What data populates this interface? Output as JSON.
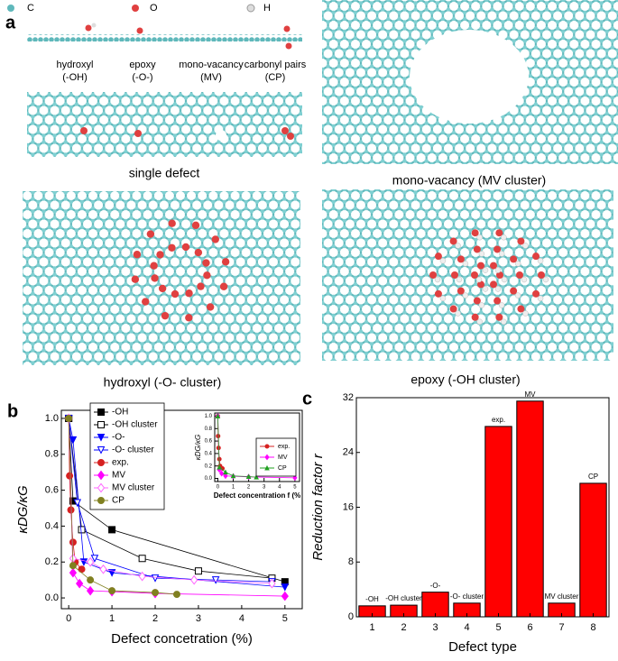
{
  "panel_a": {
    "panel_label": "a",
    "atom_legend": [
      "C",
      "O",
      "H"
    ],
    "defect_labels": [
      {
        "name": "hydroxyl",
        "abbr": "(-OH)"
      },
      {
        "name": "epoxy",
        "abbr": "(-O-)"
      },
      {
        "name": "mono-vacancy",
        "abbr": "(MV)"
      },
      {
        "name": "carbonyl pairs",
        "abbr": "(CP)"
      }
    ],
    "captions": [
      "single defect",
      "mono-vacancy (MV cluster)",
      "hydroxyl (-O- cluster)",
      "epoxy (-OH cluster)"
    ]
  },
  "chart_data": [
    {
      "type": "line",
      "panel_label": "b",
      "y_label": "κDG/κG",
      "x_label": "Defect concetration (%)",
      "xlim": [
        -0.17,
        5.4
      ],
      "ylim": [
        -0.06,
        1.045
      ],
      "xticks": [
        0,
        1,
        2,
        3,
        4,
        5
      ],
      "yticks": [
        {
          "value": 0,
          "label": "0.0"
        },
        {
          "value": 0.2,
          "label": "0.2"
        },
        {
          "value": 0.4,
          "label": "0.4"
        },
        {
          "value": 0.6,
          "label": "0.6"
        },
        {
          "value": 0.8,
          "label": "0.8"
        },
        {
          "value": 1,
          "label": "1.0"
        }
      ],
      "legend": "upper left",
      "series": [
        {
          "name": "-OH",
          "color": "#000000",
          "marker": "square",
          "filled": true,
          "x": [
            0,
            0.1,
            1,
            5
          ],
          "values": [
            1.0,
            0.54,
            0.38,
            0.09
          ]
        },
        {
          "name": "-OH cluster",
          "color": "#000000",
          "marker": "square",
          "filled": false,
          "x": [
            0,
            0.3,
            1.7,
            3.0,
            4.7
          ],
          "values": [
            1.0,
            0.38,
            0.22,
            0.15,
            0.11
          ]
        },
        {
          "name": "-O-",
          "color": "#0000ff",
          "marker": "triangle-down",
          "filled": true,
          "x": [
            0,
            0.1,
            0.35,
            1,
            5
          ],
          "values": [
            1.0,
            0.88,
            0.2,
            0.14,
            0.06
          ]
        },
        {
          "name": "-O- cluster",
          "color": "#0000ff",
          "marker": "triangle-down",
          "filled": false,
          "x": [
            0,
            0.2,
            0.6,
            2.0,
            3.4,
            4.7
          ],
          "values": [
            1.0,
            0.53,
            0.22,
            0.11,
            0.1,
            0.09
          ]
        },
        {
          "name": "exp.",
          "color": "#d62020",
          "marker": "circle",
          "filled": true,
          "x": [
            0,
            0.02,
            0.05,
            0.1,
            0.15,
            0.3
          ],
          "values": [
            1.0,
            0.68,
            0.49,
            0.31,
            0.2,
            0.16
          ]
        },
        {
          "name": "MV",
          "color": "#ff00ff",
          "marker": "diamond",
          "filled": true,
          "x": [
            0,
            0.1,
            0.25,
            0.5,
            1,
            2,
            5
          ],
          "values": [
            1.0,
            0.14,
            0.08,
            0.04,
            0.035,
            0.025,
            0.01
          ]
        },
        {
          "name": "MV cluster",
          "color": "#ff66ff",
          "marker": "diamond",
          "filled": false,
          "x": [
            0,
            0.1,
            0.5,
            0.8,
            1.7,
            2.9,
            4.7
          ],
          "values": [
            1.0,
            0.22,
            0.2,
            0.16,
            0.12,
            0.1,
            0.08
          ]
        },
        {
          "name": "CP",
          "color": "#808020",
          "marker": "circle",
          "filled": true,
          "x": [
            0,
            0.1,
            0.5,
            1,
            2,
            2.5
          ],
          "values": [
            1.0,
            0.18,
            0.1,
            0.04,
            0.03,
            0.02
          ]
        }
      ]
    },
    {
      "type": "line",
      "y_label": "κDG/κG",
      "x_label": "Defect concentration f (%",
      "xlim": [
        -0.2,
        5.3
      ],
      "ylim": [
        -0.05,
        1.05
      ],
      "xticks": [
        0,
        1,
        2,
        3,
        4,
        5
      ],
      "yticks": [
        {
          "value": 0,
          "label": "0.0"
        },
        {
          "value": 0.2,
          "label": "0.2"
        },
        {
          "value": 0.4,
          "label": "0.4"
        },
        {
          "value": 0.6,
          "label": "0.6"
        },
        {
          "value": 0.8,
          "label": "0.8"
        },
        {
          "value": 1,
          "label": "1.0"
        }
      ],
      "legend": "upper right",
      "series": [
        {
          "name": "exp.",
          "color": "#d62020",
          "marker": "circle",
          "filled": true,
          "x": [
            0,
            0.02,
            0.05,
            0.1,
            0.15,
            0.3
          ],
          "values": [
            1.0,
            0.68,
            0.49,
            0.31,
            0.2,
            0.16
          ]
        },
        {
          "name": "MV",
          "color": "#ff00ff",
          "marker": "diamond",
          "filled": true,
          "x": [
            0,
            0.1,
            0.25,
            0.5,
            1,
            2,
            5
          ],
          "values": [
            1.0,
            0.14,
            0.08,
            0.04,
            0.035,
            0.025,
            0.01
          ]
        },
        {
          "name": "CP",
          "color": "#20a020",
          "marker": "triangle-up",
          "filled": true,
          "x": [
            0,
            0.1,
            0.5,
            1,
            2,
            2.5
          ],
          "values": [
            1.0,
            0.18,
            0.1,
            0.04,
            0.03,
            0.02
          ]
        }
      ]
    },
    {
      "type": "bar",
      "panel_label": "c",
      "y_label": "Reduction factor r",
      "x_label": "Defect type",
      "categories": [
        "1",
        "2",
        "3",
        "4",
        "5",
        "6",
        "7",
        "8"
      ],
      "values": [
        1.6,
        1.7,
        3.6,
        2.0,
        27.8,
        31.5,
        2.0,
        19.5
      ],
      "bar_labels": [
        "-OH",
        "-OH cluster",
        "-O-",
        "-O- cluster",
        "exp.",
        "MV",
        "MV cluster",
        "CP"
      ],
      "color": "#ff0000",
      "ylim": [
        0,
        32
      ],
      "yticks": [
        0,
        8,
        16,
        24,
        32
      ]
    }
  ]
}
